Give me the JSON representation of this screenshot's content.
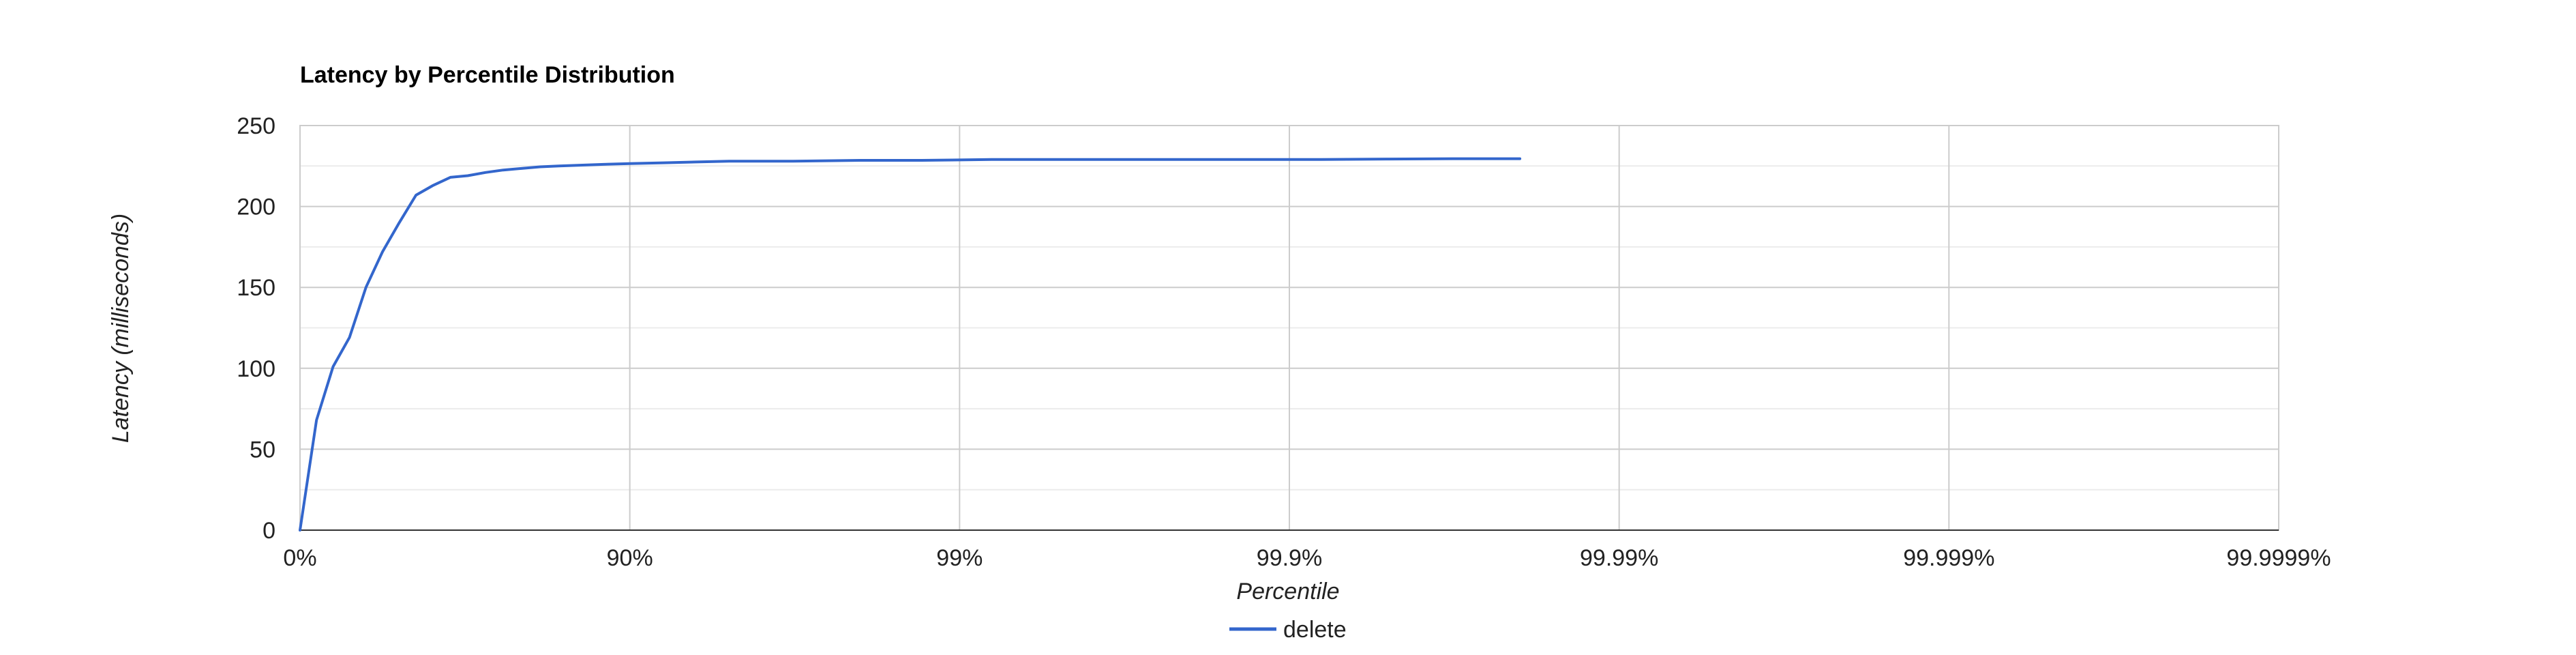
{
  "chart_data": {
    "type": "line",
    "title": "Latency by Percentile Distribution",
    "xlabel": "Percentile",
    "ylabel": "Latency (milliseconds)",
    "x_axis_scale": "percentile nines (log of 1/(1-p))",
    "x_ticks": [
      "0%",
      "90%",
      "99%",
      "99.9%",
      "99.99%",
      "99.999%",
      "99.9999%"
    ],
    "xlim": [
      0,
      99.9999
    ],
    "y_ticks": [
      "0",
      "50",
      "100",
      "150",
      "200",
      "250"
    ],
    "ylim": [
      0,
      250
    ],
    "grid": true,
    "legend_position": "bottom",
    "series": [
      {
        "name": "delete",
        "color": "#3366cc",
        "x": [
          0,
          10.9,
          20.6,
          29.2,
          36.9,
          43.8,
          50.0,
          55.5,
          60.5,
          65.0,
          69.0,
          72.6,
          75.8,
          78.7,
          81.3,
          83.6,
          88.0,
          90.0,
          92.1,
          93.7,
          95.0,
          96.8,
          98.0,
          98.7,
          99.2,
          99.5,
          99.68,
          99.8,
          99.87,
          99.92,
          99.95,
          99.968,
          99.98
        ],
        "y": [
          0,
          68,
          101,
          119,
          150,
          172,
          190,
          207,
          213,
          218,
          219,
          221,
          222.5,
          223.5,
          224.5,
          225,
          226,
          226.5,
          227,
          227.5,
          228,
          228,
          228.5,
          228.5,
          229,
          229,
          229,
          229,
          229,
          229,
          229.3,
          229.5,
          229.5
        ]
      }
    ]
  }
}
